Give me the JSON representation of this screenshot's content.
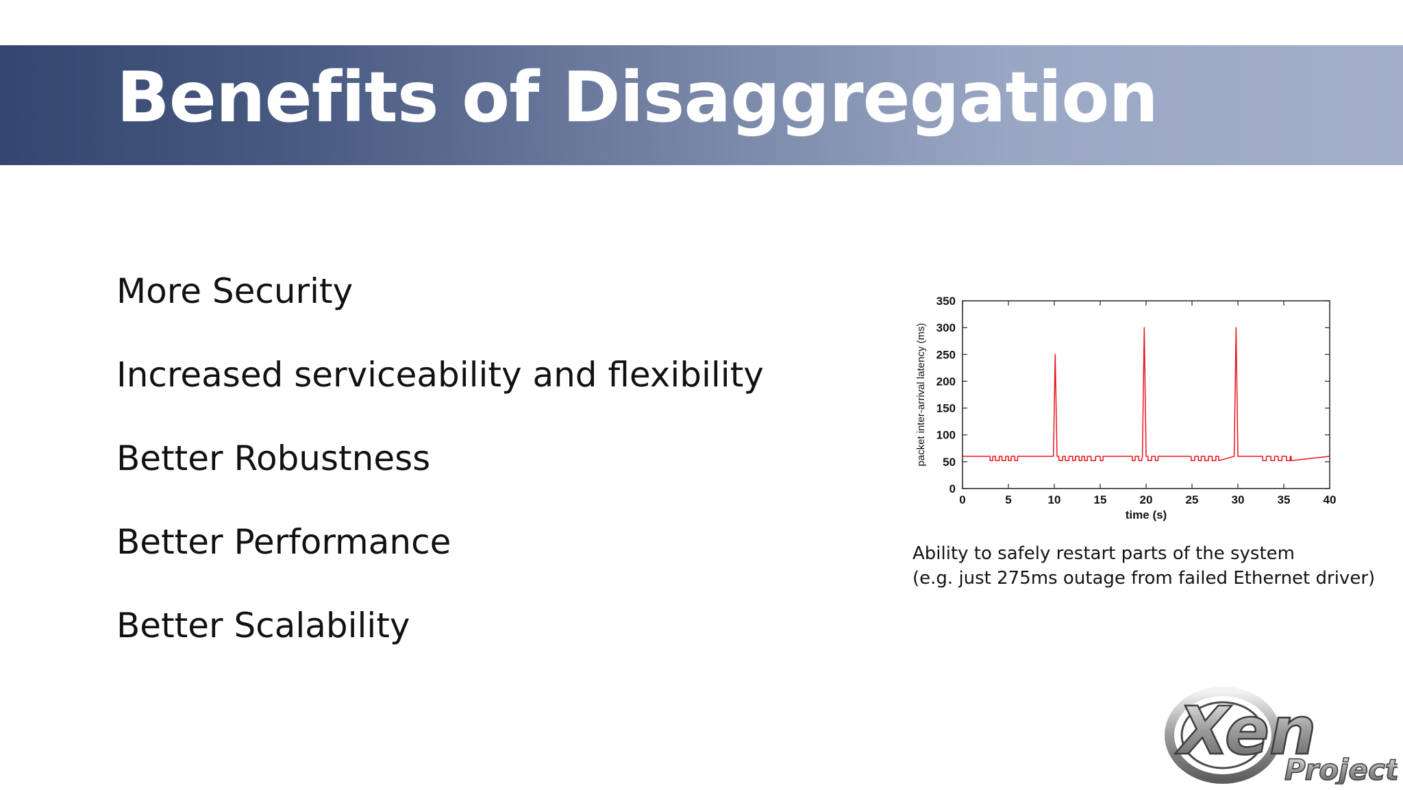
{
  "slide": {
    "title": "Benefits of Disaggregation",
    "bullets": [
      "More Security",
      "Increased serviceability and flexibility",
      "Better Robustness",
      "Better Performance",
      "Better Scalability"
    ],
    "caption": {
      "line1": "Ability to safely restart parts of the system",
      "line2": "(e.g. just 275ms outage from failed Ethernet driver)"
    },
    "logo": {
      "word": "Xen",
      "sub": "Project",
      "icon": "xen-project-logo-icon"
    },
    "colors": {
      "banner_left": "#34466f",
      "banner_right": "#a3afca",
      "series": "#e8141c"
    }
  },
  "chart_data": {
    "type": "line",
    "title": "",
    "xlabel": "time (s)",
    "ylabel": "packet inter-arrival latency (ms)",
    "xlim": [
      0,
      40
    ],
    "ylim": [
      0,
      350
    ],
    "xticks": [
      0,
      5,
      10,
      15,
      20,
      25,
      30,
      35,
      40
    ],
    "yticks": [
      0,
      50,
      100,
      150,
      200,
      250,
      300,
      350
    ],
    "grid": false,
    "series": [
      {
        "color": "#e8141c",
        "x": [
          0,
          3,
          3,
          3.3,
          3.3,
          3.6,
          3.6,
          4.0,
          4.0,
          4.3,
          4.3,
          4.7,
          4.7,
          5.0,
          5.0,
          5.3,
          5.3,
          5.7,
          5.7,
          6.0,
          6.0,
          9.7,
          9.9,
          10.1,
          10.3,
          10.5,
          10.5,
          10.9,
          10.9,
          11.2,
          11.2,
          11.6,
          11.6,
          12.0,
          12.0,
          12.3,
          12.3,
          12.7,
          12.7,
          13.0,
          13.0,
          13.3,
          13.3,
          13.6,
          13.6,
          14.0,
          14.0,
          14.5,
          14.5,
          15.0,
          15.0,
          15.3,
          15.3,
          18.5,
          18.5,
          18.8,
          18.8,
          19.2,
          19.2,
          19.5,
          19.6,
          19.8,
          20.0,
          20.2,
          20.2,
          20.6,
          20.6,
          21.0,
          21.0,
          21.3,
          21.3,
          24.9,
          24.9,
          25.3,
          25.3,
          25.7,
          25.7,
          26.0,
          26.0,
          26.4,
          26.4,
          26.8,
          26.8,
          27.2,
          27.2,
          27.6,
          27.6,
          27.9,
          27.9,
          29.6,
          29.8,
          30.0,
          32.7,
          32.7,
          33.1,
          33.1,
          33.6,
          33.6,
          34.0,
          34.0,
          34.4,
          34.4,
          34.8,
          34.8,
          35.3,
          35.3,
          35.7,
          35.7,
          35.8,
          35.8,
          40
        ],
        "y": [
          60,
          60,
          52,
          52,
          60,
          60,
          52,
          52,
          60,
          60,
          52,
          52,
          60,
          60,
          52,
          52,
          60,
          60,
          52,
          52,
          60,
          60,
          60,
          250,
          60,
          60,
          52,
          52,
          60,
          60,
          52,
          52,
          60,
          60,
          52,
          52,
          60,
          60,
          52,
          52,
          60,
          60,
          52,
          52,
          60,
          60,
          52,
          52,
          60,
          60,
          52,
          52,
          60,
          60,
          52,
          52,
          60,
          60,
          52,
          52,
          60,
          300,
          60,
          60,
          52,
          52,
          60,
          60,
          52,
          52,
          60,
          60,
          52,
          52,
          60,
          60,
          52,
          52,
          60,
          60,
          52,
          52,
          60,
          60,
          52,
          52,
          60,
          60,
          52,
          60,
          300,
          60,
          60,
          52,
          52,
          60,
          60,
          52,
          52,
          60,
          60,
          52,
          52,
          60,
          60,
          52,
          52,
          60,
          60,
          52,
          60
        ]
      }
    ]
  }
}
